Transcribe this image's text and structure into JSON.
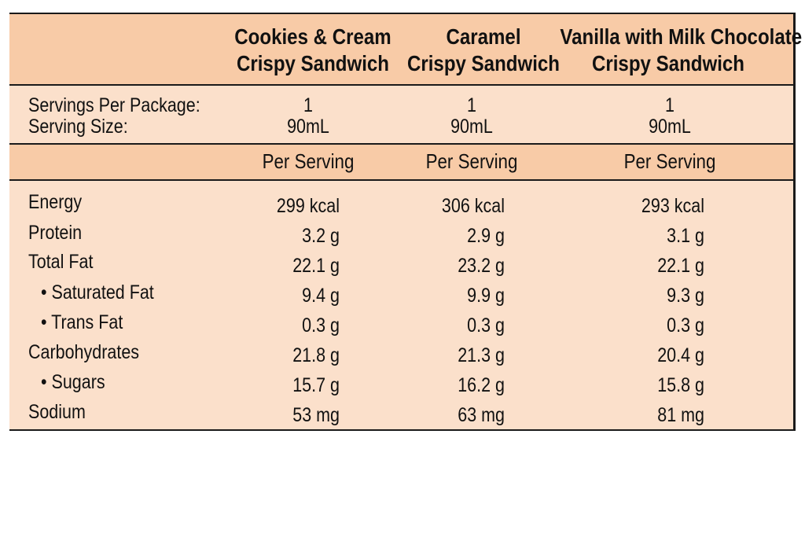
{
  "columns": [
    {
      "line1": "Cookies & Cream",
      "line2": "Crispy Sandwich"
    },
    {
      "line1": "Caramel",
      "line2": "Crispy Sandwich"
    },
    {
      "line1": "Vanilla with Milk Chocolate",
      "line2": "Crispy Sandwich"
    }
  ],
  "servings": {
    "label_package": "Servings Per Package:",
    "label_size": "Serving Size:",
    "values": [
      {
        "package": "1",
        "size": "90mL"
      },
      {
        "package": "1",
        "size": "90mL"
      },
      {
        "package": "1",
        "size": "90mL"
      }
    ]
  },
  "per_serving": [
    "Per Serving",
    "Per Serving",
    "Per Serving"
  ],
  "nutrients": [
    {
      "label": "Energy",
      "indent": false,
      "values": [
        "299 kcal",
        "306 kcal",
        "293 kcal"
      ]
    },
    {
      "label": "Protein",
      "indent": false,
      "values": [
        "3.2 g",
        "2.9 g",
        "3.1 g"
      ]
    },
    {
      "label": "Total Fat",
      "indent": false,
      "values": [
        "22.1 g",
        "23.2 g",
        "22.1 g"
      ]
    },
    {
      "label": "• Saturated Fat",
      "indent": true,
      "values": [
        "9.4 g",
        "9.9 g",
        "9.3 g"
      ]
    },
    {
      "label": "• Trans Fat",
      "indent": true,
      "values": [
        "0.3 g",
        "0.3 g",
        "0.3 g"
      ]
    },
    {
      "label": "Carbohydrates",
      "indent": false,
      "values": [
        "21.8 g",
        "21.3 g",
        "20.4 g"
      ]
    },
    {
      "label": "• Sugars",
      "indent": true,
      "values": [
        "15.7 g",
        "16.2 g",
        "15.8 g"
      ]
    },
    {
      "label": "Sodium",
      "indent": false,
      "values": [
        "53 mg",
        "63 mg",
        "81 mg"
      ]
    }
  ],
  "colors": {
    "band": "#f8cba7",
    "body": "#fbe0cb",
    "rule": "#1a1a1a"
  }
}
